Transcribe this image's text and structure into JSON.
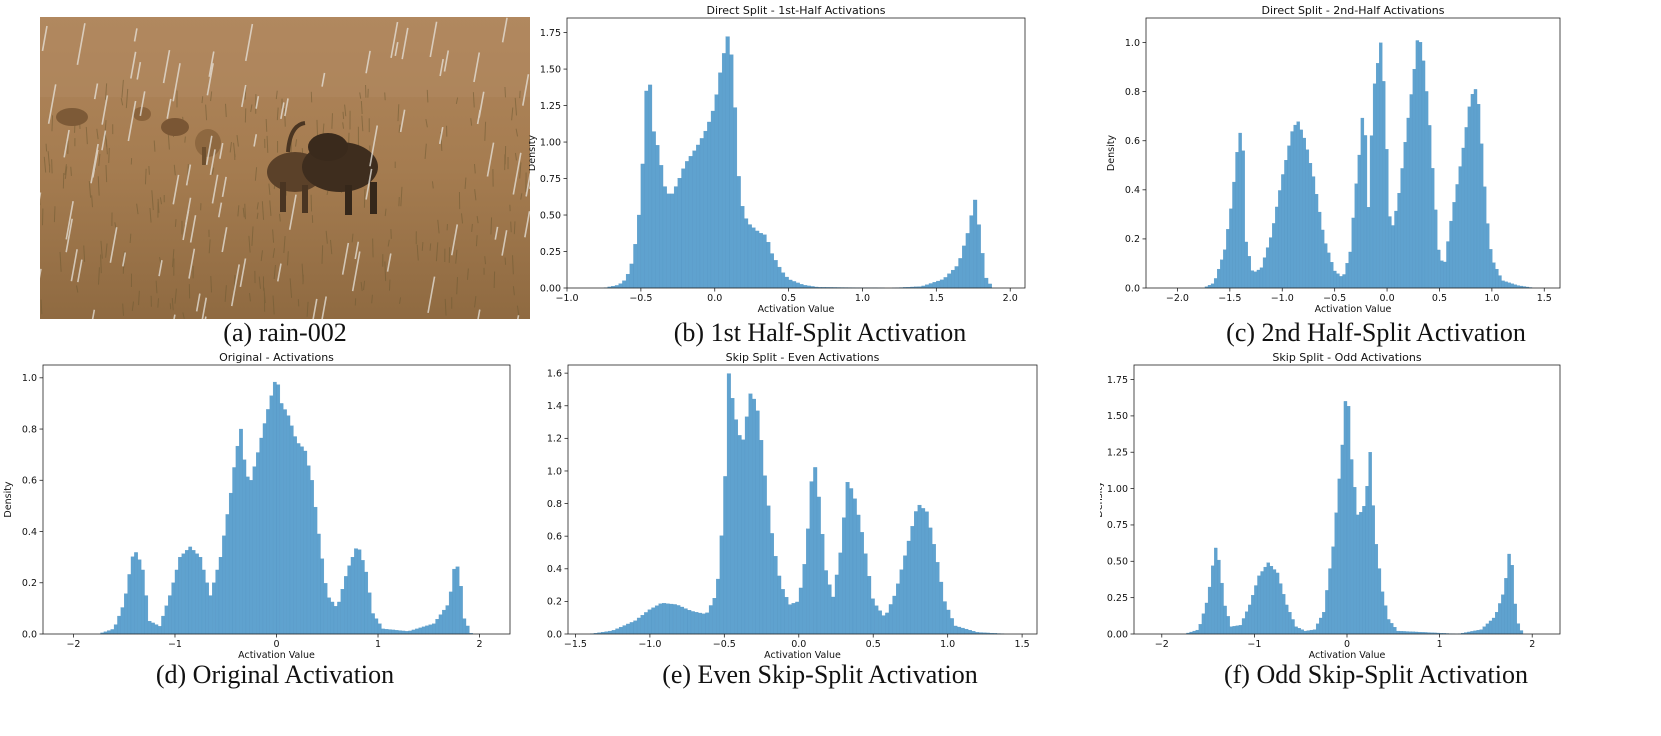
{
  "photo": {
    "caption": "(a) rain-002"
  },
  "captions": {
    "b": "(b) 1st Half-Split Activation",
    "c": "(c) 2nd Half-Split Activation",
    "d": "(d) Original Activation",
    "e": "(e) Even Skip-Split Activation",
    "f": "(f) Odd Skip-Split Activation"
  },
  "colors": {
    "bar": "#5fa2cf",
    "bar_edge": "#5496c4",
    "axis": "#222222"
  },
  "chart_data": [
    {
      "id": "b",
      "type": "bar",
      "title": "Direct Split - 1st-Half Activations",
      "xlabel": "Activation Value",
      "ylabel": "Density",
      "xlim": [
        -1.0,
        2.1
      ],
      "ylim": [
        0,
        1.85
      ],
      "xticks": [
        -1.0,
        -0.5,
        0.0,
        0.5,
        1.0,
        1.5,
        2.0
      ],
      "xtick_labels": [
        "−1.0",
        "−0.5",
        "0.0",
        "0.5",
        "1.0",
        "1.5",
        "2.0"
      ],
      "yticks": [
        0,
        0.25,
        0.5,
        0.75,
        1.0,
        1.25,
        1.5,
        1.75
      ],
      "ytick_labels": [
        "0.00",
        "0.25",
        "0.50",
        "0.75",
        "1.00",
        "1.25",
        "1.50",
        "1.75"
      ],
      "bin_range": [
        -1.0,
        2.0
      ],
      "bin_count": 120,
      "profile": [
        [
          -0.75,
          0
        ],
        [
          -0.65,
          0.02
        ],
        [
          -0.6,
          0.06
        ],
        [
          -0.55,
          0.2
        ],
        [
          -0.5,
          0.6
        ],
        [
          -0.47,
          1.2
        ],
        [
          -0.45,
          1.6
        ],
        [
          -0.42,
          1.1
        ],
        [
          -0.38,
          0.95
        ],
        [
          -0.34,
          0.7
        ],
        [
          -0.3,
          0.62
        ],
        [
          -0.25,
          0.72
        ],
        [
          -0.2,
          0.85
        ],
        [
          -0.15,
          0.92
        ],
        [
          -0.1,
          1.0
        ],
        [
          -0.05,
          1.1
        ],
        [
          0.0,
          1.25
        ],
        [
          0.05,
          1.55
        ],
        [
          0.1,
          1.78
        ],
        [
          0.14,
          1.2
        ],
        [
          0.17,
          0.62
        ],
        [
          0.22,
          0.45
        ],
        [
          0.3,
          0.38
        ],
        [
          0.35,
          0.36
        ],
        [
          0.38,
          0.25
        ],
        [
          0.45,
          0.12
        ],
        [
          0.5,
          0.06
        ],
        [
          0.6,
          0.02
        ],
        [
          0.7,
          0.005
        ],
        [
          1.2,
          0.0
        ],
        [
          1.4,
          0.01
        ],
        [
          1.55,
          0.06
        ],
        [
          1.65,
          0.16
        ],
        [
          1.72,
          0.4
        ],
        [
          1.76,
          0.62
        ],
        [
          1.8,
          0.35
        ],
        [
          1.83,
          0.08
        ],
        [
          1.88,
          0
        ]
      ]
    },
    {
      "id": "c",
      "type": "bar",
      "title": "Direct Split - 2nd-Half Activations",
      "xlabel": "Activation Value",
      "ylabel": "Density",
      "xlim": [
        -2.3,
        1.65
      ],
      "ylim": [
        0,
        1.1
      ],
      "xticks": [
        -2.0,
        -1.5,
        -1.0,
        -0.5,
        0.0,
        0.5,
        1.0,
        1.5
      ],
      "xtick_labels": [
        "−2.0",
        "−1.5",
        "−1.0",
        "−0.5",
        "0.0",
        "0.5",
        "1.0",
        "1.5"
      ],
      "yticks": [
        0,
        0.2,
        0.4,
        0.6,
        0.8,
        1.0
      ],
      "ytick_labels": [
        "0.0",
        "0.2",
        "0.4",
        "0.6",
        "0.8",
        "1.0"
      ],
      "bin_range": [
        -2.0,
        1.5
      ],
      "bin_count": 120,
      "profile": [
        [
          -1.75,
          0
        ],
        [
          -1.65,
          0.02
        ],
        [
          -1.55,
          0.15
        ],
        [
          -1.48,
          0.35
        ],
        [
          -1.42,
          0.6
        ],
        [
          -1.38,
          0.67
        ],
        [
          -1.35,
          0.2
        ],
        [
          -1.28,
          0.06
        ],
        [
          -1.2,
          0.08
        ],
        [
          -1.1,
          0.22
        ],
        [
          -1.0,
          0.45
        ],
        [
          -0.9,
          0.65
        ],
        [
          -0.85,
          0.68
        ],
        [
          -0.78,
          0.6
        ],
        [
          -0.7,
          0.45
        ],
        [
          -0.6,
          0.2
        ],
        [
          -0.5,
          0.07
        ],
        [
          -0.42,
          0.04
        ],
        [
          -0.35,
          0.15
        ],
        [
          -0.3,
          0.4
        ],
        [
          -0.25,
          0.6
        ],
        [
          -0.22,
          0.79
        ],
        [
          -0.18,
          0.3
        ],
        [
          -0.13,
          0.8
        ],
        [
          -0.06,
          1.0
        ],
        [
          -0.02,
          0.78
        ],
        [
          0.02,
          0.3
        ],
        [
          0.06,
          0.25
        ],
        [
          0.12,
          0.4
        ],
        [
          0.18,
          0.62
        ],
        [
          0.25,
          0.85
        ],
        [
          0.3,
          1.05
        ],
        [
          0.35,
          0.92
        ],
        [
          0.4,
          0.7
        ],
        [
          0.45,
          0.4
        ],
        [
          0.5,
          0.12
        ],
        [
          0.55,
          0.1
        ],
        [
          0.62,
          0.3
        ],
        [
          0.72,
          0.55
        ],
        [
          0.8,
          0.78
        ],
        [
          0.86,
          0.82
        ],
        [
          0.9,
          0.6
        ],
        [
          0.95,
          0.3
        ],
        [
          1.0,
          0.12
        ],
        [
          1.1,
          0.03
        ],
        [
          1.25,
          0.01
        ],
        [
          1.4,
          0
        ]
      ]
    },
    {
      "id": "d",
      "type": "bar",
      "title": "Original - Activations",
      "xlabel": "Activation Value",
      "ylabel": "Density",
      "xlim": [
        -2.3,
        2.3
      ],
      "ylim": [
        0,
        1.05
      ],
      "xticks": [
        -2,
        -1,
        0,
        1,
        2
      ],
      "xtick_labels": [
        "−2",
        "−1",
        "0",
        "1",
        "2"
      ],
      "yticks": [
        0,
        0.2,
        0.4,
        0.6,
        0.8,
        1.0
      ],
      "ytick_labels": [
        "0.0",
        "0.2",
        "0.4",
        "0.6",
        "0.8",
        "1.0"
      ],
      "bin_range": [
        -2.0,
        2.0
      ],
      "bin_count": 120,
      "profile": [
        [
          -1.75,
          0
        ],
        [
          -1.6,
          0.02
        ],
        [
          -1.5,
          0.12
        ],
        [
          -1.42,
          0.3
        ],
        [
          -1.38,
          0.32
        ],
        [
          -1.32,
          0.26
        ],
        [
          -1.25,
          0.05
        ],
        [
          -1.15,
          0.03
        ],
        [
          -1.05,
          0.15
        ],
        [
          -0.95,
          0.3
        ],
        [
          -0.85,
          0.34
        ],
        [
          -0.75,
          0.3
        ],
        [
          -0.65,
          0.15
        ],
        [
          -0.55,
          0.3
        ],
        [
          -0.45,
          0.55
        ],
        [
          -0.4,
          0.7
        ],
        [
          -0.35,
          0.8
        ],
        [
          -0.3,
          0.62
        ],
        [
          -0.25,
          0.6
        ],
        [
          -0.2,
          0.68
        ],
        [
          -0.1,
          0.85
        ],
        [
          0.0,
          1.01
        ],
        [
          0.05,
          0.9
        ],
        [
          0.12,
          0.85
        ],
        [
          0.2,
          0.75
        ],
        [
          0.28,
          0.72
        ],
        [
          0.35,
          0.6
        ],
        [
          0.42,
          0.38
        ],
        [
          0.5,
          0.15
        ],
        [
          0.6,
          0.1
        ],
        [
          0.7,
          0.25
        ],
        [
          0.8,
          0.35
        ],
        [
          0.88,
          0.25
        ],
        [
          0.95,
          0.08
        ],
        [
          1.05,
          0.02
        ],
        [
          1.3,
          0.01
        ],
        [
          1.55,
          0.04
        ],
        [
          1.7,
          0.12
        ],
        [
          1.76,
          0.28
        ],
        [
          1.8,
          0.25
        ],
        [
          1.85,
          0.06
        ],
        [
          1.92,
          0
        ]
      ]
    },
    {
      "id": "e",
      "type": "bar",
      "title": "Skip Split - Even Activations",
      "xlabel": "Activation Value",
      "ylabel": "Density",
      "xlim": [
        -1.55,
        1.6
      ],
      "ylim": [
        0,
        1.65
      ],
      "xticks": [
        -1.5,
        -1.0,
        -0.5,
        0.0,
        0.5,
        1.0,
        1.5
      ],
      "xtick_labels": [
        "−1.5",
        "−1.0",
        "−0.5",
        "0.0",
        "0.5",
        "1.0",
        "1.5"
      ],
      "yticks": [
        0,
        0.2,
        0.4,
        0.6,
        0.8,
        1.0,
        1.2,
        1.4,
        1.6
      ],
      "ytick_labels": [
        "0.0",
        "0.2",
        "0.4",
        "0.6",
        "0.8",
        "1.0",
        "1.2",
        "1.4",
        "1.6"
      ],
      "bin_range": [
        -1.4,
        1.5
      ],
      "bin_count": 120,
      "profile": [
        [
          -1.4,
          0
        ],
        [
          -1.25,
          0.02
        ],
        [
          -1.1,
          0.08
        ],
        [
          -1.0,
          0.15
        ],
        [
          -0.92,
          0.19
        ],
        [
          -0.82,
          0.18
        ],
        [
          -0.72,
          0.14
        ],
        [
          -0.62,
          0.12
        ],
        [
          -0.55,
          0.25
        ],
        [
          -0.5,
          0.8
        ],
        [
          -0.47,
          1.6
        ],
        [
          -0.43,
          1.35
        ],
        [
          -0.38,
          1.15
        ],
        [
          -0.32,
          1.5
        ],
        [
          -0.27,
          1.35
        ],
        [
          -0.22,
          0.9
        ],
        [
          -0.17,
          0.55
        ],
        [
          -0.12,
          0.3
        ],
        [
          -0.06,
          0.18
        ],
        [
          0.0,
          0.2
        ],
        [
          0.05,
          0.5
        ],
        [
          0.1,
          1.1
        ],
        [
          0.14,
          0.8
        ],
        [
          0.18,
          0.4
        ],
        [
          0.23,
          0.22
        ],
        [
          0.28,
          0.5
        ],
        [
          0.33,
          0.95
        ],
        [
          0.38,
          0.82
        ],
        [
          0.43,
          0.6
        ],
        [
          0.5,
          0.2
        ],
        [
          0.58,
          0.1
        ],
        [
          0.65,
          0.25
        ],
        [
          0.72,
          0.5
        ],
        [
          0.8,
          0.8
        ],
        [
          0.86,
          0.75
        ],
        [
          0.92,
          0.5
        ],
        [
          0.98,
          0.2
        ],
        [
          1.05,
          0.05
        ],
        [
          1.2,
          0.01
        ],
        [
          1.4,
          0
        ]
      ]
    },
    {
      "id": "f",
      "type": "bar",
      "title": "Skip Split - Odd Activations",
      "xlabel": "Activation Value",
      "ylabel": "Density",
      "xlim": [
        -2.3,
        2.3
      ],
      "ylim": [
        0,
        1.85
      ],
      "xticks": [
        -2,
        -1,
        0,
        1,
        2
      ],
      "xtick_labels": [
        "−2",
        "−1",
        "0",
        "1",
        "2"
      ],
      "yticks": [
        0,
        0.25,
        0.5,
        0.75,
        1.0,
        1.25,
        1.5,
        1.75
      ],
      "ytick_labels": [
        "0.00",
        "0.25",
        "0.50",
        "0.75",
        "1.00",
        "1.25",
        "1.50",
        "1.75"
      ],
      "bin_range": [
        -2.0,
        2.0
      ],
      "bin_count": 120,
      "profile": [
        [
          -1.75,
          0
        ],
        [
          -1.6,
          0.03
        ],
        [
          -1.5,
          0.25
        ],
        [
          -1.42,
          0.6
        ],
        [
          -1.38,
          0.5
        ],
        [
          -1.32,
          0.2
        ],
        [
          -1.25,
          0.05
        ],
        [
          -1.15,
          0.06
        ],
        [
          -1.05,
          0.2
        ],
        [
          -0.95,
          0.4
        ],
        [
          -0.85,
          0.49
        ],
        [
          -0.75,
          0.42
        ],
        [
          -0.65,
          0.2
        ],
        [
          -0.55,
          0.05
        ],
        [
          -0.45,
          0.02
        ],
        [
          -0.35,
          0.03
        ],
        [
          -0.25,
          0.15
        ],
        [
          -0.15,
          0.6
        ],
        [
          -0.05,
          1.3
        ],
        [
          0.0,
          1.75
        ],
        [
          0.05,
          1.2
        ],
        [
          0.12,
          0.8
        ],
        [
          0.2,
          0.9
        ],
        [
          0.25,
          1.25
        ],
        [
          0.3,
          0.7
        ],
        [
          0.38,
          0.3
        ],
        [
          0.45,
          0.1
        ],
        [
          0.55,
          0.02
        ],
        [
          1.2,
          0.0
        ],
        [
          1.45,
          0.03
        ],
        [
          1.6,
          0.12
        ],
        [
          1.7,
          0.3
        ],
        [
          1.75,
          0.55
        ],
        [
          1.78,
          0.5
        ],
        [
          1.83,
          0.1
        ],
        [
          1.9,
          0
        ]
      ]
    }
  ]
}
